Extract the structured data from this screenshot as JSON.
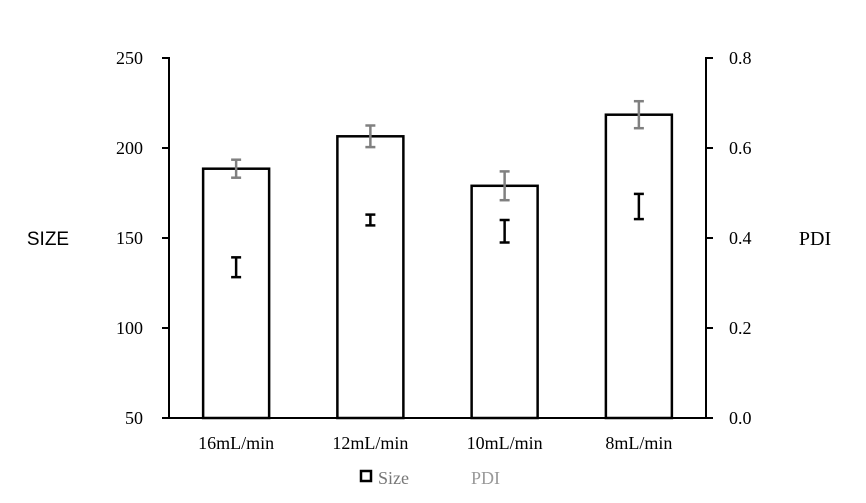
{
  "chart_data": {
    "type": "bar",
    "categories": [
      "16mL/min",
      "12mL/min",
      "10mL/min",
      "8mL/min"
    ],
    "series": [
      {
        "name": "Size",
        "axis": "left",
        "kind": "bar",
        "values": [
          188.5,
          206.5,
          179,
          218.5
        ],
        "errors": [
          5,
          6,
          8,
          7.5
        ],
        "color": "#000000",
        "error_color": "#808080"
      },
      {
        "name": "PDI",
        "axis": "right",
        "kind": "error-only",
        "values": [
          0.335,
          0.44,
          0.415,
          0.47
        ],
        "errors": [
          0.022,
          0.012,
          0.025,
          0.028
        ],
        "color": "#000000"
      }
    ],
    "ylabel": "SIZE",
    "ylim": [
      50,
      250
    ],
    "yticks": [
      50,
      100,
      150,
      200,
      250
    ],
    "y2label": "PDI",
    "y2lim": [
      0,
      0.8
    ],
    "y2ticks": [
      "0.0",
      "0.2",
      "0.4",
      "0.6",
      "0.8"
    ],
    "legend": {
      "position": "bottom",
      "items": [
        "Size",
        "PDI"
      ],
      "colors": [
        "#000000",
        "#999999"
      ]
    },
    "grid": false
  }
}
